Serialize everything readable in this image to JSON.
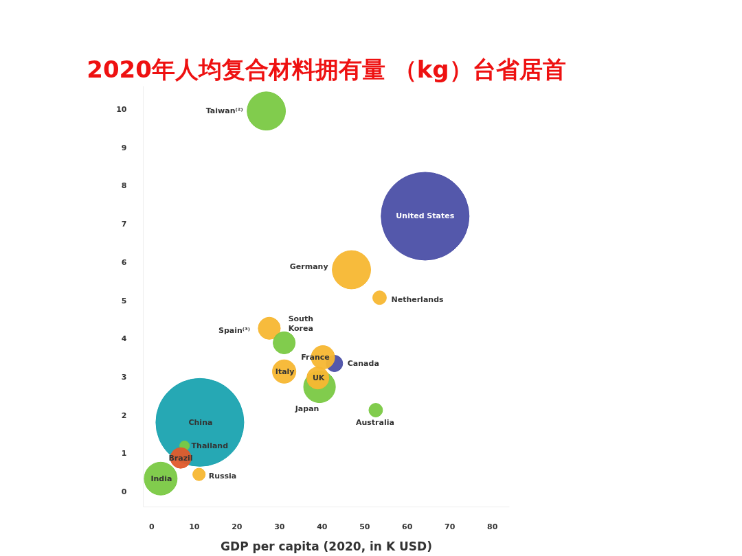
{
  "chart_data": {
    "type": "bubble",
    "title": "2020年人均复合材料拥有量 （kg）台省居首",
    "xlabel": "GDP per capita (2020, in K USD)",
    "xlim": [
      -2,
      84
    ],
    "ylim": [
      -0.4,
      10.6
    ],
    "xticks": [
      0,
      10,
      20,
      30,
      40,
      50,
      60,
      70,
      80
    ],
    "yticks": [
      0,
      1,
      2,
      3,
      4,
      5,
      6,
      7,
      8,
      9,
      10
    ],
    "grid": false,
    "legend": false,
    "series": [
      {
        "name": "Taiwan⁽²⁾",
        "color": "#7ac943",
        "x": [
          26.9
        ],
        "values": [
          9.95
        ],
        "sizes": [
          0.19
        ]
      },
      {
        "name": "United States",
        "color": "#4b4fa6",
        "x": [
          64.2
        ],
        "values": [
          7.2
        ],
        "sizes": [
          1
        ]
      },
      {
        "name": "Germany",
        "color": "#f7b731",
        "x": [
          46.9
        ],
        "values": [
          5.8
        ],
        "sizes": [
          0.19
        ]
      },
      {
        "name": "Netherlands",
        "color": "#f7b731",
        "x": [
          53.5
        ],
        "values": [
          5.07
        ],
        "sizes": [
          0.024
        ]
      },
      {
        "name": "Spain⁽³⁾",
        "color": "#f7b731",
        "x": [
          27.6
        ],
        "values": [
          4.27
        ],
        "sizes": [
          0.063
        ]
      },
      {
        "name": "South\nKorea",
        "color": "#7ac943",
        "x": [
          31.1
        ],
        "values": [
          3.89
        ],
        "sizes": [
          0.063
        ]
      },
      {
        "name": "Canada",
        "color": "#4b4fa6",
        "x": [
          42.9
        ],
        "values": [
          3.35
        ],
        "sizes": [
          0.035
        ]
      },
      {
        "name": "France",
        "color": "#f7b731",
        "x": [
          40.2
        ],
        "values": [
          3.51
        ],
        "sizes": [
          0.071
        ]
      },
      {
        "name": "Italy",
        "color": "#f7b731",
        "x": [
          31.1
        ],
        "values": [
          3.14
        ],
        "sizes": [
          0.071
        ]
      },
      {
        "name": "Japan",
        "color": "#7ac943",
        "x": [
          39.4
        ],
        "values": [
          2.74
        ],
        "sizes": [
          0.13
        ]
      },
      {
        "name": "UK",
        "color": "#f7b731",
        "x": [
          39.0
        ],
        "values": [
          2.97
        ],
        "sizes": [
          0.063
        ]
      },
      {
        "name": "Australia",
        "color": "#7ac943",
        "x": [
          52.6
        ],
        "values": [
          2.13
        ],
        "sizes": [
          0.024
        ]
      },
      {
        "name": "China",
        "color": "#1aa3b0",
        "x": [
          11.3
        ],
        "values": [
          1.81
        ],
        "sizes": [
          1
        ]
      },
      {
        "name": "Thailand",
        "color": "#7ac943",
        "x": [
          7.7
        ],
        "values": [
          1.2
        ],
        "sizes": [
          0.012
        ]
      },
      {
        "name": "Brazil",
        "color": "#e05a2b",
        "x": [
          6.8
        ],
        "values": [
          0.88
        ],
        "sizes": [
          0.055
        ]
      },
      {
        "name": "Russia",
        "color": "#f7b731",
        "x": [
          11.1
        ],
        "values": [
          0.45
        ],
        "sizes": [
          0.02
        ]
      },
      {
        "name": "India",
        "color": "#7ac943",
        "x": [
          2.1
        ],
        "values": [
          0.34
        ],
        "sizes": [
          0.14
        ]
      }
    ]
  }
}
